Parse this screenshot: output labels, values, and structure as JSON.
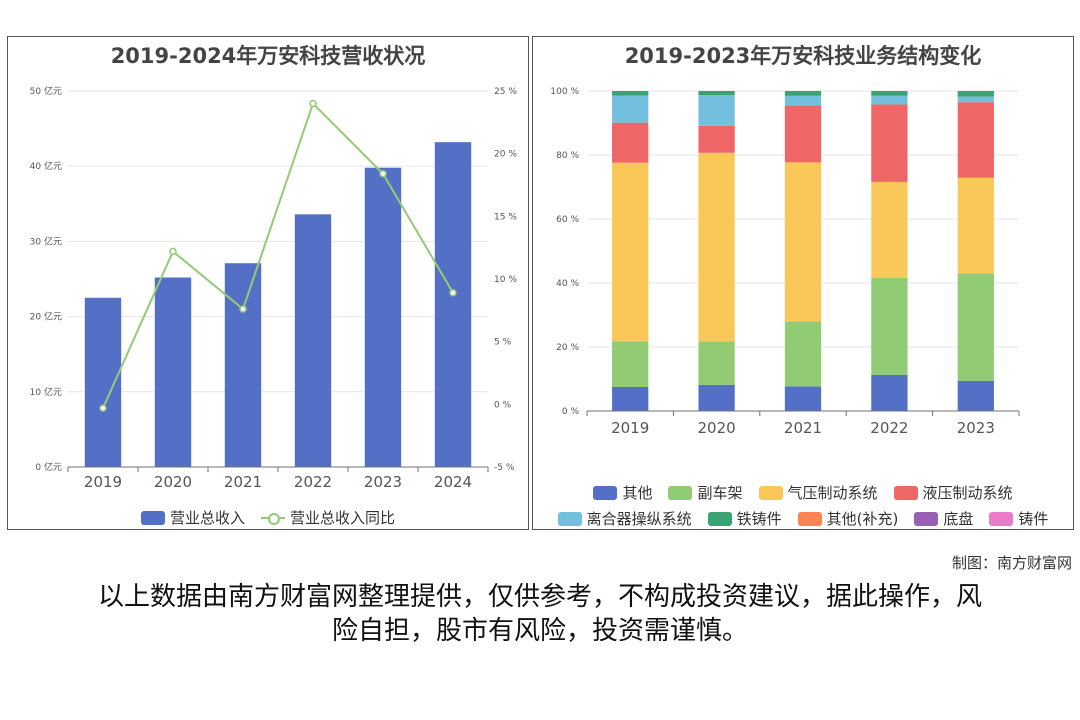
{
  "left_chart": {
    "title": "2019-2024年万安科技营收状况",
    "legend": {
      "bar_label": "营业总收入",
      "line_label": "营业总收入同比"
    },
    "y_left_ticks": [
      "0 亿元",
      "10 亿元",
      "20 亿元",
      "30 亿元",
      "40 亿元",
      "50 亿元"
    ],
    "y_right_ticks": [
      "-5 %",
      "0 %",
      "5 %",
      "10 %",
      "15 %",
      "20 %",
      "25 %"
    ],
    "colors": {
      "bar": "#5470c6",
      "line": "#91cc75"
    }
  },
  "right_chart": {
    "title": "2019-2023年万安科技业务结构变化",
    "y_ticks": [
      "0 %",
      "20 %",
      "40 %",
      "60 %",
      "80 %",
      "100 %"
    ],
    "legend_row1": [
      {
        "label": "其他",
        "color": "#5470c6"
      },
      {
        "label": "副车架",
        "color": "#91cc75"
      },
      {
        "label": "气压制动系统",
        "color": "#fac858"
      },
      {
        "label": "液压制动系统",
        "color": "#ee6666"
      }
    ],
    "legend_row2": [
      {
        "label": "离合器操纵系统",
        "color": "#73c0de"
      },
      {
        "label": "铁铸件",
        "color": "#3ba272"
      },
      {
        "label": "其他(补充)",
        "color": "#fc8452"
      },
      {
        "label": "底盘",
        "color": "#9a60b4"
      },
      {
        "label": "铸件",
        "color": "#ea7ccc"
      }
    ]
  },
  "chart_data": [
    {
      "type": "bar",
      "title": "2019-2024年万安科技营收状况",
      "categories": [
        "2019",
        "2020",
        "2021",
        "2022",
        "2023",
        "2024"
      ],
      "series": [
        {
          "name": "营业总收入",
          "type": "bar",
          "axis": "left",
          "unit": "亿元",
          "values": [
            22.5,
            25.2,
            27.1,
            33.6,
            39.8,
            43.2
          ]
        },
        {
          "name": "营业总收入同比",
          "type": "line",
          "axis": "right",
          "unit": "%",
          "values": [
            -0.3,
            12.2,
            7.6,
            24.0,
            18.4,
            8.9
          ]
        }
      ],
      "ylim_left": [
        0,
        50
      ],
      "ylim_right": [
        -5,
        25
      ],
      "grid": true,
      "legend_position": "bottom"
    },
    {
      "type": "bar",
      "stacked": true,
      "title": "2019-2023年万安科技业务结构变化",
      "categories": [
        "2019",
        "2020",
        "2021",
        "2022",
        "2023"
      ],
      "series": [
        {
          "name": "其他",
          "values": [
            7.5,
            8.2,
            7.7,
            11.3,
            9.4
          ]
        },
        {
          "name": "副车架",
          "values": [
            14.3,
            13.5,
            20.3,
            30.3,
            33.6
          ]
        },
        {
          "name": "气压制动系统",
          "values": [
            55.8,
            59.0,
            49.7,
            30.0,
            29.9
          ]
        },
        {
          "name": "液压制动系统",
          "values": [
            12.5,
            8.4,
            17.8,
            24.2,
            23.6
          ]
        },
        {
          "name": "离合器操纵系统",
          "values": [
            8.5,
            9.6,
            3.0,
            2.7,
            1.8
          ]
        },
        {
          "name": "铁铸件",
          "values": [
            1.4,
            1.3,
            1.5,
            1.5,
            1.7
          ]
        },
        {
          "name": "其他(补充)",
          "values": [
            0,
            0,
            0,
            0,
            0
          ]
        },
        {
          "name": "底盘",
          "values": [
            0,
            0,
            0,
            0,
            0
          ]
        },
        {
          "name": "铸件",
          "values": [
            0,
            0,
            0,
            0,
            0
          ]
        }
      ],
      "ylim": [
        0,
        100
      ],
      "unit": "%",
      "grid": true,
      "legend_position": "bottom"
    }
  ],
  "footer": {
    "credit": "制图：南方财富网",
    "disclaimer_line1": "以上数据由南方财富网整理提供，仅供参考，不构成投资建议，据此操作，风",
    "disclaimer_line2": "险自担，股市有风险，投资需谨慎。"
  }
}
